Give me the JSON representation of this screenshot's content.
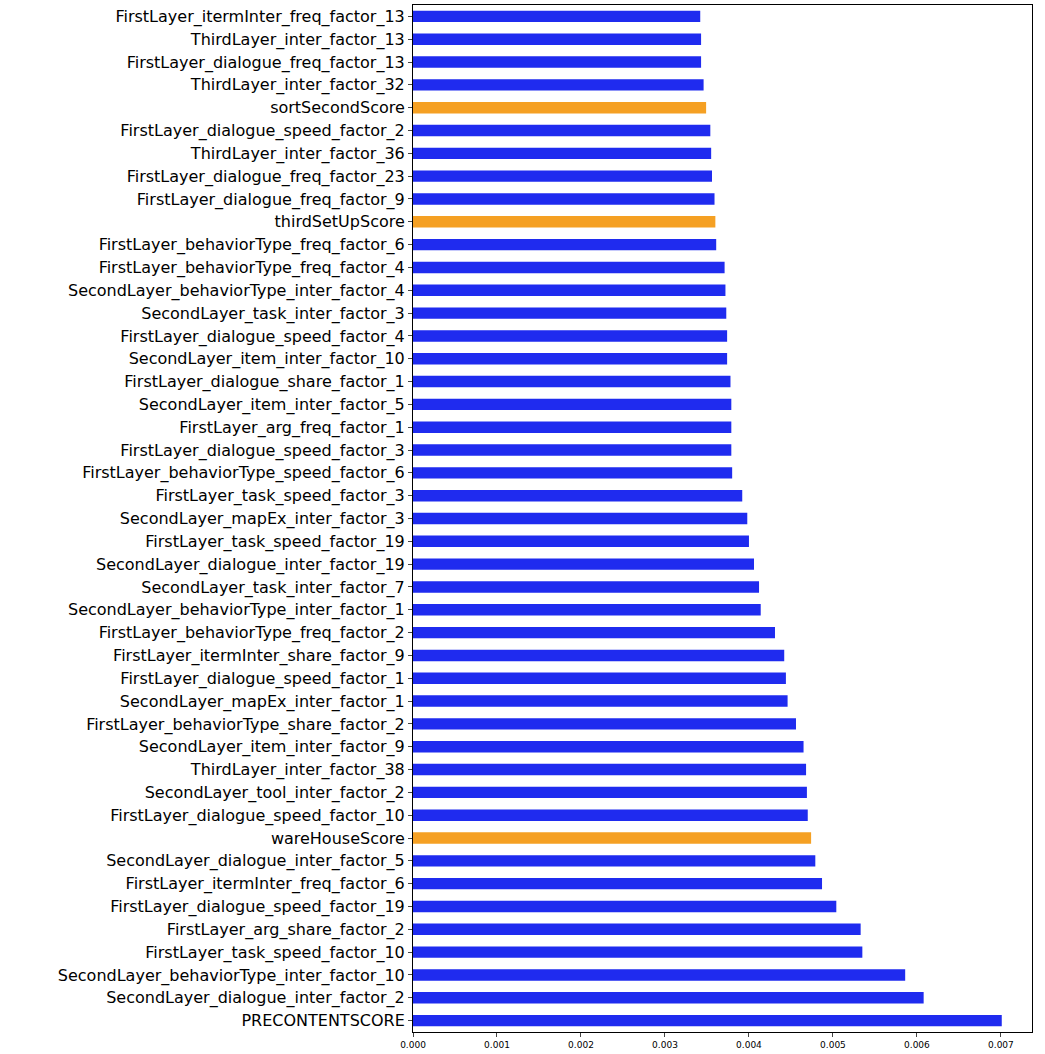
{
  "chart_data": {
    "type": "bar",
    "orientation": "horizontal",
    "grid": false,
    "categories": [
      "PRECONTENTSCORE",
      "SecondLayer_dialogue_inter_factor_2",
      "SecondLayer_behaviorType_inter_factor_10",
      "FirstLayer_task_speed_factor_10",
      "FirstLayer_arg_share_factor_2",
      "FirstLayer_dialogue_speed_factor_19",
      "FirstLayer_itermInter_freq_factor_6",
      "SecondLayer_dialogue_inter_factor_5",
      "wareHouseScore",
      "FirstLayer_dialogue_speed_factor_10",
      "SecondLayer_tool_inter_factor_2",
      "ThirdLayer_inter_factor_38",
      "SecondLayer_item_inter_factor_9",
      "FirstLayer_behaviorType_share_factor_2",
      "SecondLayer_mapEx_inter_factor_1",
      "FirstLayer_dialogue_speed_factor_1",
      "FirstLayer_itermInter_share_factor_9",
      "FirstLayer_behaviorType_freq_factor_2",
      "SecondLayer_behaviorType_inter_factor_1",
      "SecondLayer_task_inter_factor_7",
      "SecondLayer_dialogue_inter_factor_19",
      "FirstLayer_task_speed_factor_19",
      "SecondLayer_mapEx_inter_factor_3",
      "FirstLayer_task_speed_factor_3",
      "FirstLayer_behaviorType_speed_factor_6",
      "FirstLayer_dialogue_speed_factor_3",
      "FirstLayer_arg_freq_factor_1",
      "SecondLayer_item_inter_factor_5",
      "FirstLayer_dialogue_share_factor_1",
      "SecondLayer_item_inter_factor_10",
      "FirstLayer_dialogue_speed_factor_4",
      "SecondLayer_task_inter_factor_3",
      "SecondLayer_behaviorType_inter_factor_4",
      "FirstLayer_behaviorType_freq_factor_4",
      "FirstLayer_behaviorType_freq_factor_6",
      "thirdSetUpScore",
      "FirstLayer_dialogue_freq_factor_9",
      "FirstLayer_dialogue_freq_factor_23",
      "ThirdLayer_inter_factor_36",
      "FirstLayer_dialogue_speed_factor_2",
      "sortSecondScore",
      "ThirdLayer_inter_factor_32",
      "FirstLayer_dialogue_freq_factor_13",
      "ThirdLayer_inter_factor_13",
      "FirstLayer_itermInter_freq_factor_13"
    ],
    "values": [
      0.00701,
      0.00608,
      0.00586,
      0.00535,
      0.00533,
      0.00504,
      0.00487,
      0.00479,
      0.00474,
      0.0047,
      0.00469,
      0.00468,
      0.00465,
      0.00456,
      0.00446,
      0.00444,
      0.00442,
      0.00431,
      0.00414,
      0.00412,
      0.00406,
      0.004,
      0.00398,
      0.00392,
      0.0038,
      0.00379,
      0.00379,
      0.00379,
      0.00378,
      0.00374,
      0.00374,
      0.00373,
      0.00372,
      0.00371,
      0.00361,
      0.0036,
      0.00359,
      0.00356,
      0.00355,
      0.00354,
      0.00349,
      0.00346,
      0.00343,
      0.00343,
      0.00342
    ],
    "colors": [
      "#1f2bef",
      "#1f2bef",
      "#1f2bef",
      "#1f2bef",
      "#1f2bef",
      "#1f2bef",
      "#1f2bef",
      "#1f2bef",
      "#f5a023",
      "#1f2bef",
      "#1f2bef",
      "#1f2bef",
      "#1f2bef",
      "#1f2bef",
      "#1f2bef",
      "#1f2bef",
      "#1f2bef",
      "#1f2bef",
      "#1f2bef",
      "#1f2bef",
      "#1f2bef",
      "#1f2bef",
      "#1f2bef",
      "#1f2bef",
      "#1f2bef",
      "#1f2bef",
      "#1f2bef",
      "#1f2bef",
      "#1f2bef",
      "#1f2bef",
      "#1f2bef",
      "#1f2bef",
      "#1f2bef",
      "#1f2bef",
      "#1f2bef",
      "#f5a023",
      "#1f2bef",
      "#1f2bef",
      "#1f2bef",
      "#1f2bef",
      "#f5a023",
      "#1f2bef",
      "#1f2bef",
      "#1f2bef",
      "#1f2bef"
    ],
    "xlim": [
      0,
      0.00737
    ],
    "xticks": [
      {
        "value": 0,
        "label": "0.000"
      },
      {
        "value": 0.001,
        "label": "0.001"
      },
      {
        "value": 0.002,
        "label": "0.002"
      },
      {
        "value": 0.003,
        "label": "0.003"
      },
      {
        "value": 0.004,
        "label": "0.004"
      },
      {
        "value": 0.005,
        "label": "0.005"
      },
      {
        "value": 0.006,
        "label": "0.006"
      },
      {
        "value": 0.007,
        "label": "0.007"
      }
    ]
  }
}
